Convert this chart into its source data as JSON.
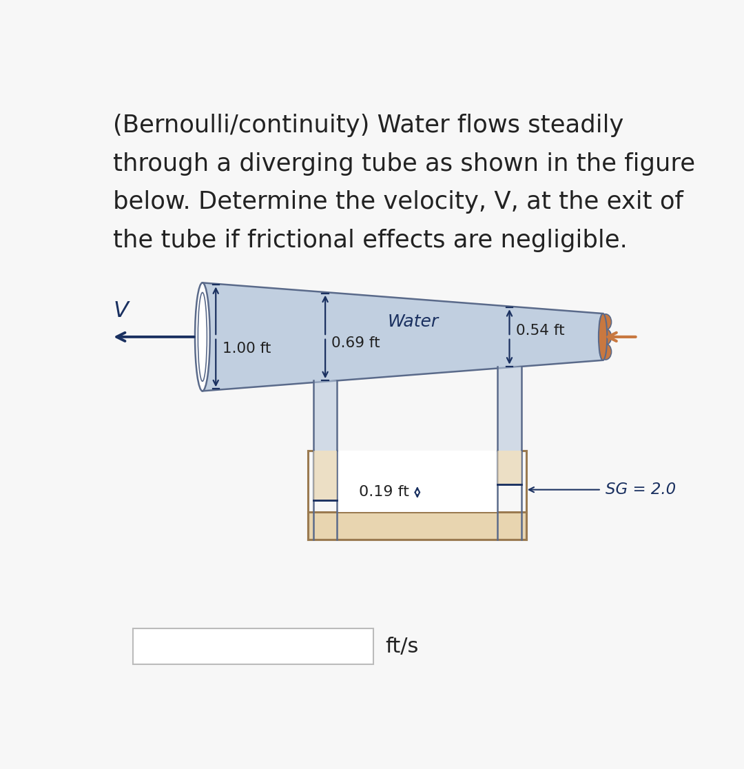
{
  "bg_color": "#f7f7f7",
  "tube_fill": "#b8c8dc",
  "tube_stroke": "#5a6a8a",
  "tube_alpha": 0.85,
  "arrow_color": "#1a3060",
  "dim_color": "#1a3060",
  "water_label": "Water",
  "dim_1": "1.00 ft",
  "dim_2": "0.69 ft",
  "dim_3": "0.54 ft",
  "dim_4": "0.19 ft",
  "v_label": "V",
  "sg_label": "SG = 2.0",
  "fts_label": "ft/s",
  "heavy_fluid_fill": "#e8d5b0",
  "heavy_fluid_stroke": "#9a7a50",
  "title_color": "#222222",
  "title_fontsize": 25.5,
  "inlet_orange": "#c87840",
  "title_lines": [
    "(Bernoulli/continuity) Water flows steadily",
    "through a diverging tube as shown in the figure",
    "below. Determine the velocity, V, at the exit of",
    "the tube if frictional effects are negligible."
  ]
}
